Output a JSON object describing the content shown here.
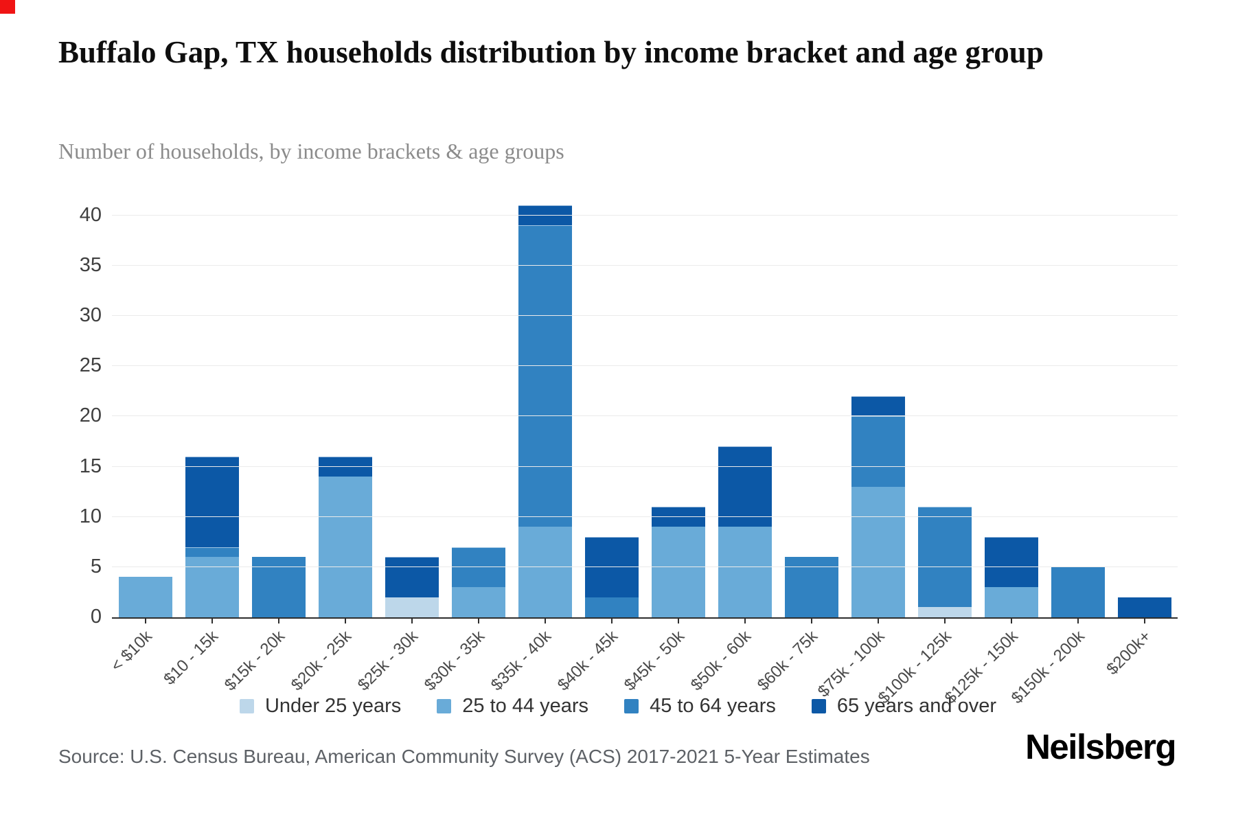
{
  "header": {
    "title": "Buffalo Gap, TX households distribution by income bracket and age group",
    "subtitle": "Number of households, by income brackets & age groups"
  },
  "chart_data": {
    "type": "bar",
    "stacked": true,
    "title": "Buffalo Gap, TX households distribution by income bracket and age group",
    "subtitle": "Number of households, by income brackets & age groups",
    "xlabel": "",
    "ylabel": "",
    "ylim": [
      0,
      41
    ],
    "yticks": [
      0,
      5,
      10,
      15,
      20,
      25,
      30,
      35,
      40
    ],
    "grid": true,
    "legend_position": "bottom",
    "categories": [
      "< $10k",
      "$10 - 15k",
      "$15k - 20k",
      "$20k - 25k",
      "$25k - 30k",
      "$30k - 35k",
      "$35k - 40k",
      "$40k - 45k",
      "$45k - 50k",
      "$50k - 60k",
      "$60k - 75k",
      "$75k - 100k",
      "$100k - 125k",
      "$125k - 150k",
      "$150k - 200k",
      "$200k+"
    ],
    "series": [
      {
        "name": "Under 25 years",
        "color": "#bdd7ea",
        "values": [
          0,
          0,
          0,
          0,
          2,
          0,
          0,
          0,
          0,
          0,
          0,
          0,
          1,
          0,
          0,
          0
        ]
      },
      {
        "name": "25 to 44 years",
        "color": "#69abd8",
        "values": [
          4,
          6,
          0,
          14,
          0,
          3,
          9,
          0,
          9,
          9,
          0,
          13,
          0,
          3,
          0,
          0
        ]
      },
      {
        "name": "45 to 64 years",
        "color": "#3182c1",
        "values": [
          0,
          1,
          6,
          0,
          0,
          4,
          30,
          2,
          0,
          0,
          6,
          7,
          10,
          0,
          5,
          0
        ]
      },
      {
        "name": "65 years and over",
        "color": "#0c58a6",
        "values": [
          0,
          9,
          0,
          2,
          4,
          0,
          2,
          6,
          2,
          8,
          0,
          2,
          0,
          5,
          0,
          2
        ]
      }
    ],
    "totals": [
      4,
      16,
      6,
      16,
      6,
      7,
      41,
      8,
      11,
      17,
      6,
      22,
      11,
      8,
      5,
      2
    ]
  },
  "footer": {
    "source": "Source: U.S. Census Bureau, American Community Survey (ACS) 2017-2021 5-Year Estimates",
    "logo": "Neilsberg"
  }
}
